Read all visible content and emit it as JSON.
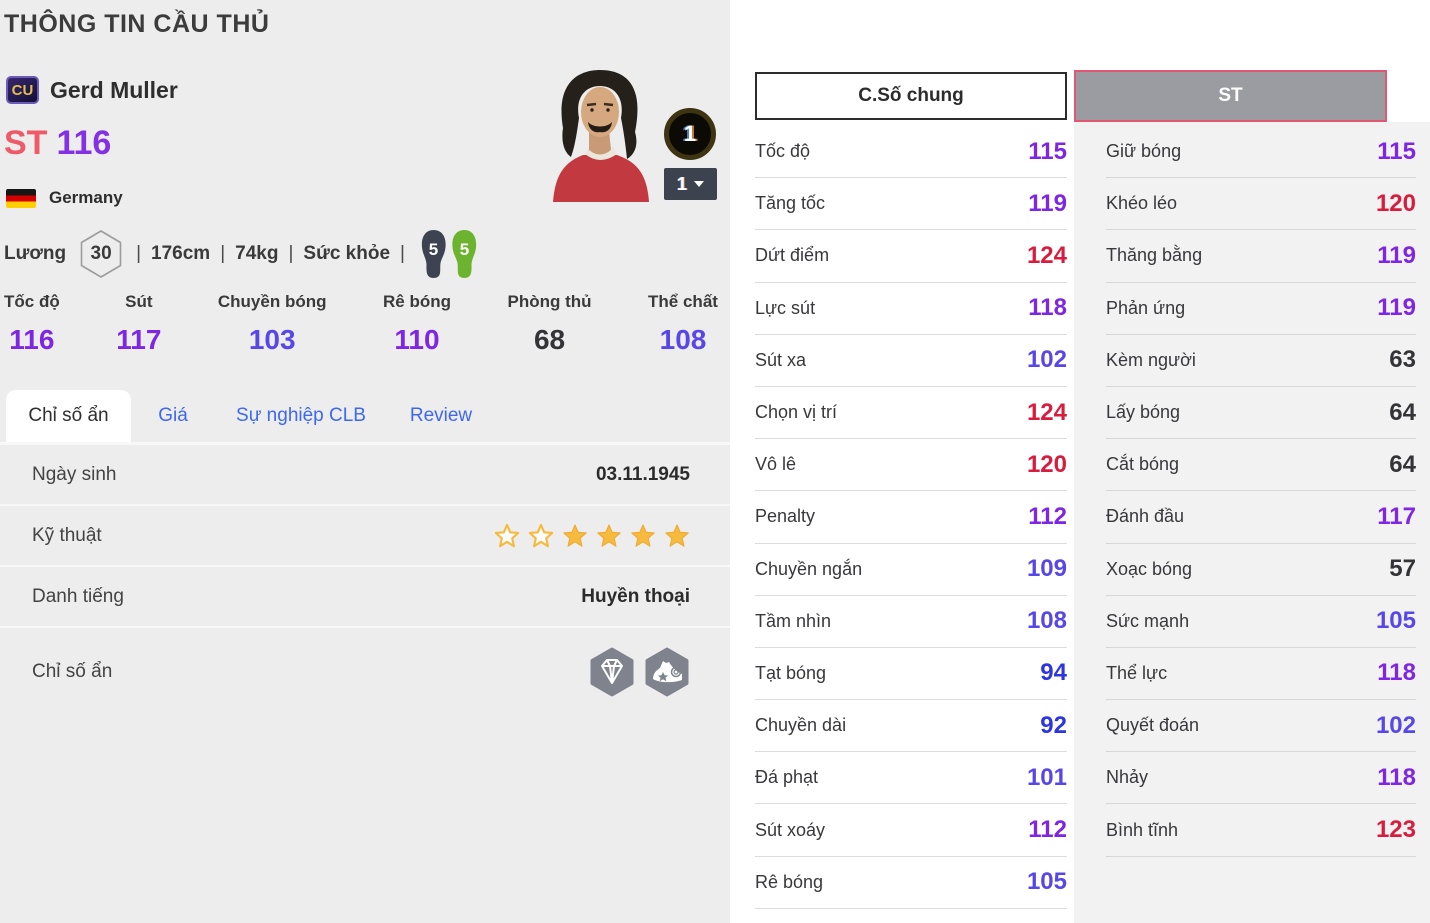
{
  "page_title": "THÔNG TIN CẦU THỦ",
  "player": {
    "badge": "CU",
    "name": "Gerd Muller",
    "position": "ST",
    "rating": "116",
    "nation": "Germany",
    "salary_label": "Lương",
    "salary": "30",
    "height": "176cm",
    "weight": "74kg",
    "health_label": "Sức khỏe",
    "weak_foot": "5",
    "strong_foot": "5",
    "level_badge": "1",
    "level_dropdown": "1"
  },
  "main_stats": [
    {
      "label": "Tốc độ",
      "value": "116"
    },
    {
      "label": "Sút",
      "value": "117"
    },
    {
      "label": "Chuyền bóng",
      "value": "103"
    },
    {
      "label": "Rê bóng",
      "value": "110"
    },
    {
      "label": "Phòng thủ",
      "value": "68"
    },
    {
      "label": "Thể chất",
      "value": "108"
    }
  ],
  "tabs": [
    {
      "label": "Chỉ số ẩn",
      "slug": "tab-hidden-stats",
      "active": true
    },
    {
      "label": "Giá",
      "slug": "tab-price",
      "active": false
    },
    {
      "label": "Sự nghiệp CLB",
      "slug": "tab-club-career",
      "active": false
    },
    {
      "label": "Review",
      "slug": "tab-review",
      "active": false
    }
  ],
  "details": [
    {
      "label": "Ngày sinh",
      "type": "text",
      "value": "03.11.1945"
    },
    {
      "label": "Kỹ thuật",
      "type": "stars",
      "stars_empty": 2,
      "stars_filled": 4
    },
    {
      "label": "Danh tiếng",
      "type": "text",
      "value": "Huyền thoại"
    },
    {
      "label": "Chỉ số ẩn",
      "type": "icons",
      "icons": [
        "diamond-hex-icon",
        "boot-hex-icon"
      ]
    }
  ],
  "stat_columns": [
    {
      "header": "C.Số chung",
      "active": false,
      "rows": [
        {
          "label": "Tốc độ",
          "value": "115"
        },
        {
          "label": "Tăng tốc",
          "value": "119"
        },
        {
          "label": "Dứt điểm",
          "value": "124"
        },
        {
          "label": "Lực sút",
          "value": "118"
        },
        {
          "label": "Sút xa",
          "value": "102"
        },
        {
          "label": "Chọn vị trí",
          "value": "124"
        },
        {
          "label": "Vô lê",
          "value": "120"
        },
        {
          "label": "Penalty",
          "value": "112"
        },
        {
          "label": "Chuyền ngắn",
          "value": "109"
        },
        {
          "label": "Tầm nhìn",
          "value": "108"
        },
        {
          "label": "Tạt bóng",
          "value": "94"
        },
        {
          "label": "Chuyền dài",
          "value": "92"
        },
        {
          "label": "Đá phạt",
          "value": "101"
        },
        {
          "label": "Sút xoáy",
          "value": "112"
        },
        {
          "label": "Rê bóng",
          "value": "105"
        }
      ]
    },
    {
      "header": "ST",
      "active": true,
      "rows": [
        {
          "label": "Giữ bóng",
          "value": "115"
        },
        {
          "label": "Khéo léo",
          "value": "120"
        },
        {
          "label": "Thăng bằng",
          "value": "119"
        },
        {
          "label": "Phản ứng",
          "value": "119"
        },
        {
          "label": "Kèm người",
          "value": "63"
        },
        {
          "label": "Lấy bóng",
          "value": "64"
        },
        {
          "label": "Cắt bóng",
          "value": "64"
        },
        {
          "label": "Đánh đầu",
          "value": "117"
        },
        {
          "label": "Xoạc bóng",
          "value": "57"
        },
        {
          "label": "Sức mạnh",
          "value": "105"
        },
        {
          "label": "Thể lực",
          "value": "118"
        },
        {
          "label": "Quyết đoán",
          "value": "102"
        },
        {
          "label": "Nhảy",
          "value": "118"
        },
        {
          "label": "Bình tĩnh",
          "value": "123"
        }
      ]
    }
  ],
  "colors": {
    "value_red": "#d81c3e",
    "value_purple": "#7e26e3",
    "value_violet": "#5847e8",
    "value_blue": "#2c35df",
    "value_dark": "#333338",
    "position_red": "#ee5a67",
    "rating_purple": "#8431e6",
    "tab_blue": "#3e68ee",
    "star_gold": "#f6ba3f",
    "st_button_border": "#e25672",
    "weak_foot_color": "#3d4350",
    "strong_foot_color": "#6cb32f"
  }
}
